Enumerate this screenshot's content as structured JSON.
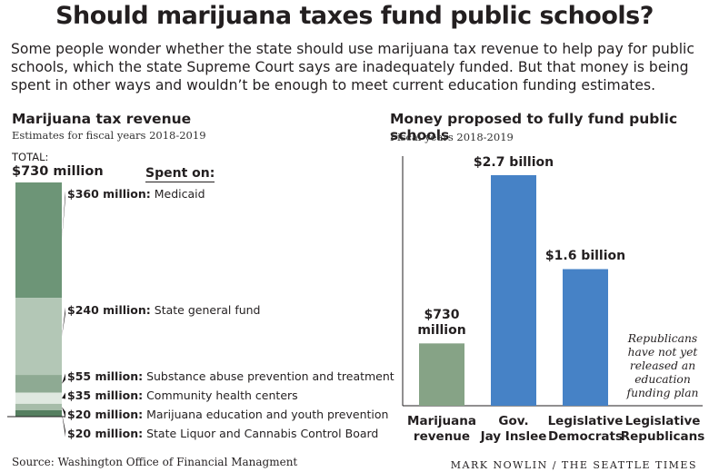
{
  "title": "Should marijuana taxes fund public schools?",
  "intro": "Some people wonder whether the state should use marijuana tax revenue to help pay for public schools, which the state Supreme Court says are inadequately funded. But that money is being spent in other ways and wouldn’t be enough to meet current education funding estimates.",
  "source": "Source: Washington Office of Financial Managment",
  "credit": "MARK NOWLIN / THE SEATTLE TIMES",
  "chart_data": [
    {
      "type": "bar",
      "stacked": true,
      "title": "Marijuana tax revenue",
      "subtitle": "Estimates for fiscal years 2018-2019",
      "total_label": "TOTAL:",
      "total_value": "$730 million",
      "total": 730,
      "legend_title": "Spent on:",
      "segments": [
        {
          "amount": "$360 million:",
          "name": "Medicaid",
          "value": 360,
          "color": "#6d9577"
        },
        {
          "amount": "$240 million:",
          "name": "State general fund",
          "value": 240,
          "color": "#b3c7b6"
        },
        {
          "amount": "$55 million:",
          "name": "Substance abuse prevention and treatment",
          "value": 55,
          "color": "#8eaa93"
        },
        {
          "amount": "$35 million:",
          "name": "Community health centers",
          "value": 35,
          "color": "#dfe8e0"
        },
        {
          "amount": "$20 million:",
          "name": "Marijuana education and youth prevention",
          "value": 20,
          "color": "#a6bca9"
        },
        {
          "amount": "$20 million:",
          "name": "State Liquor and Cannabis Control Board",
          "value": 20,
          "color": "#567f60"
        }
      ]
    },
    {
      "type": "bar",
      "title": "Money proposed to fully fund public schools",
      "subtitle": "Fiscal years 2018-2019",
      "ylim": [
        0,
        2.7
      ],
      "categories": [
        "Marijuana revenue",
        "Gov. Jay Inslee",
        "Legislative Democrats",
        "Legislative Republicans"
      ],
      "category_lines": [
        [
          "Marijuana",
          "revenue"
        ],
        [
          "Gov.",
          "Jay Inslee"
        ],
        [
          "Legislative",
          "Democrats"
        ],
        [
          "Legislative",
          "Republicans"
        ]
      ],
      "values": [
        0.73,
        2.7,
        1.6,
        null
      ],
      "value_labels": [
        [
          "$730",
          "million"
        ],
        [
          "$2.7 billion"
        ],
        [
          "$1.6 billion"
        ],
        []
      ],
      "colors": [
        "#86a386",
        "#4682c6",
        "#4682c6",
        "#4682c6"
      ],
      "note": [
        "Republicans",
        "have not yet",
        "released an",
        "education",
        "funding plan"
      ]
    }
  ]
}
